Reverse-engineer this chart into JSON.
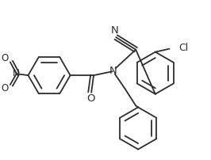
{
  "bg_color": "#ffffff",
  "line_color": "#2d2d2d",
  "lw": 1.3,
  "figsize": [
    2.66,
    2.02
  ],
  "dpi": 100,
  "xlim": [
    0,
    266
  ],
  "ylim": [
    0,
    202
  ]
}
